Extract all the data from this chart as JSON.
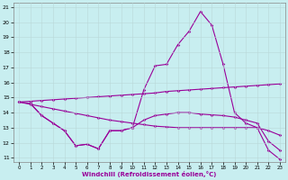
{
  "xlabel": "Windchill (Refroidissement éolien,°C)",
  "bg_color": "#c8eef0",
  "line_color": "#990099",
  "grid_color": "#b8d8d8",
  "ylim_min": 10.7,
  "ylim_max": 21.3,
  "xlim_min": -0.5,
  "xlim_max": 23.5,
  "yticks": [
    11,
    12,
    13,
    14,
    15,
    16,
    17,
    18,
    19,
    20,
    21
  ],
  "xticks": [
    0,
    1,
    2,
    3,
    4,
    5,
    6,
    7,
    8,
    9,
    10,
    11,
    12,
    13,
    14,
    15,
    16,
    17,
    18,
    19,
    20,
    21,
    22,
    23
  ],
  "line1_x": [
    0,
    1,
    2,
    3,
    4,
    5,
    6,
    7,
    8,
    9,
    10,
    11,
    12,
    13,
    14,
    15,
    16,
    17,
    18,
    19,
    20,
    21,
    22,
    23
  ],
  "line1_y": [
    14.7,
    14.75,
    14.8,
    14.85,
    14.9,
    14.95,
    15.0,
    15.05,
    15.1,
    15.15,
    15.2,
    15.25,
    15.3,
    15.4,
    15.45,
    15.5,
    15.55,
    15.6,
    15.65,
    15.7,
    15.75,
    15.8,
    15.85,
    15.9
  ],
  "line2_x": [
    0,
    1,
    2,
    3,
    4,
    5,
    6,
    7,
    8,
    9,
    10,
    11,
    12,
    13,
    14,
    15,
    16,
    17,
    18,
    19,
    20,
    21,
    22,
    23
  ],
  "line2_y": [
    14.7,
    14.6,
    13.8,
    13.3,
    12.8,
    11.8,
    11.9,
    11.6,
    12.8,
    12.8,
    13.0,
    15.5,
    17.1,
    17.2,
    18.5,
    19.4,
    20.7,
    19.8,
    17.2,
    14.0,
    13.3,
    13.0,
    11.5,
    10.9
  ],
  "line3_x": [
    1,
    2,
    3,
    4,
    5,
    6,
    7,
    8,
    9,
    10,
    11,
    12,
    13,
    14,
    15,
    16,
    17,
    18,
    19,
    20,
    21,
    22,
    23
  ],
  "line3_y": [
    14.6,
    13.8,
    13.3,
    12.8,
    11.8,
    11.9,
    11.6,
    12.8,
    12.8,
    13.0,
    13.5,
    13.8,
    13.9,
    14.0,
    14.0,
    13.9,
    13.85,
    13.8,
    13.7,
    13.5,
    13.3,
    12.1,
    11.5
  ],
  "line4_x": [
    0,
    1,
    2,
    3,
    4,
    5,
    6,
    7,
    8,
    9,
    10,
    11,
    12,
    13,
    14,
    15,
    16,
    17,
    18,
    19,
    20,
    21,
    22,
    23
  ],
  "line4_y": [
    14.7,
    14.55,
    14.4,
    14.25,
    14.1,
    13.95,
    13.8,
    13.65,
    13.5,
    13.4,
    13.3,
    13.2,
    13.1,
    13.05,
    13.0,
    13.0,
    13.0,
    13.0,
    13.0,
    13.0,
    13.0,
    13.0,
    12.8,
    12.5
  ]
}
